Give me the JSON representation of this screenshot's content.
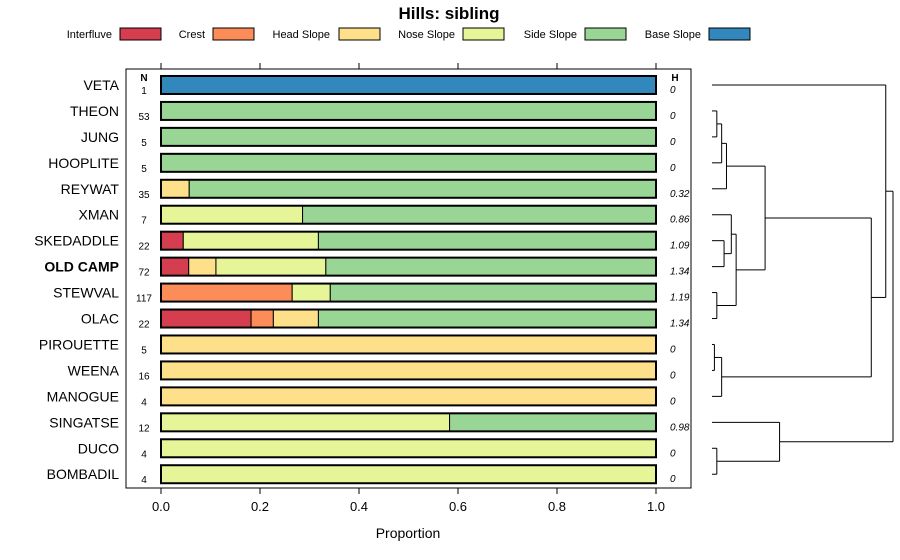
{
  "chart_data": {
    "type": "bar",
    "orientation": "horizontal",
    "stacked": true,
    "title": "Hills: sibling",
    "xlabel": "Proportion",
    "ylabel": "",
    "xlim": [
      0,
      1
    ],
    "x_ticks": [
      "0.0",
      "0.2",
      "0.4",
      "0.6",
      "0.8",
      "1.0"
    ],
    "x_tick_values": [
      0,
      0.2,
      0.4,
      0.6,
      0.8,
      1.0
    ],
    "n_header": "N",
    "h_header": "H",
    "legend": [
      {
        "name": "Interfluve",
        "color": "#d53e4f"
      },
      {
        "name": "Crest",
        "color": "#fc8d59"
      },
      {
        "name": "Head Slope",
        "color": "#fee08b"
      },
      {
        "name": "Nose Slope",
        "color": "#e6f598"
      },
      {
        "name": "Side Slope",
        "color": "#99d594"
      },
      {
        "name": "Base Slope",
        "color": "#3288bd"
      }
    ],
    "categories": [
      "VETA",
      "THEON",
      "JUNG",
      "HOOPLITE",
      "REYWAT",
      "XMAN",
      "SKEDADDLE",
      "OLD CAMP",
      "STEWVAL",
      "OLAC",
      "PIROUETTE",
      "WEENA",
      "MANOGUE",
      "SINGATSE",
      "DUCO",
      "BOMBADIL"
    ],
    "highlight": "OLD CAMP",
    "n": [
      "1",
      "53",
      "5",
      "5",
      "35",
      "7",
      "22",
      "72",
      "117",
      "22",
      "5",
      "16",
      "4",
      "12",
      "4",
      "4"
    ],
    "h": [
      "0",
      "0",
      "0",
      "0",
      "0.32",
      "0.86",
      "1.09",
      "1.34",
      "1.19",
      "1.34",
      "0",
      "0",
      "0",
      "0.98",
      "0",
      "0"
    ],
    "series": [
      {
        "name": "Interfluve",
        "values": [
          0,
          0,
          0,
          0,
          0,
          0,
          0.045,
          0.056,
          0,
          0.182,
          0,
          0,
          0,
          0,
          0,
          0
        ]
      },
      {
        "name": "Crest",
        "values": [
          0,
          0,
          0,
          0,
          0,
          0,
          0,
          0,
          0.265,
          0.045,
          0,
          0,
          0,
          0,
          0,
          0
        ]
      },
      {
        "name": "Head Slope",
        "values": [
          0,
          0,
          0,
          0,
          0.057,
          0,
          0,
          0.055,
          0,
          0.091,
          1,
          1,
          1,
          0,
          0,
          0
        ]
      },
      {
        "name": "Nose Slope",
        "values": [
          0,
          0,
          0,
          0,
          0,
          0.286,
          0.273,
          0.222,
          0.077,
          0,
          0,
          0,
          0,
          0.583,
          1,
          1
        ]
      },
      {
        "name": "Side Slope",
        "values": [
          0,
          1,
          1,
          1,
          0.943,
          0.714,
          0.682,
          0.667,
          0.658,
          0.682,
          0,
          0,
          0,
          0.417,
          0,
          0
        ]
      },
      {
        "name": "Base Slope",
        "values": [
          1,
          0,
          0,
          0,
          0,
          0,
          0,
          0,
          0,
          0,
          0,
          0,
          0,
          0,
          0,
          0
        ]
      }
    ],
    "dendrogram": {
      "leaf_order": [
        "VETA",
        "THEON",
        "JUNG",
        "HOOPLITE",
        "REYWAT",
        "XMAN",
        "SKEDADDLE",
        "OLD CAMP",
        "STEWVAL",
        "OLAC",
        "PIROUETTE",
        "WEENA",
        "MANOGUE",
        "SINGATSE",
        "DUCO",
        "BOMBADIL"
      ],
      "merges": [
        [
          1,
          2,
          0.02
        ],
        [
          16,
          3,
          0.04
        ],
        [
          4,
          17,
          0.06
        ],
        [
          14,
          15,
          0.02
        ],
        [
          6,
          7,
          0.05
        ],
        [
          8,
          9,
          0.02
        ],
        [
          5,
          20,
          0.08
        ],
        [
          21,
          22,
          0.1
        ],
        [
          23,
          18,
          0.22
        ],
        [
          10,
          11,
          0.01
        ],
        [
          12,
          25,
          0.04
        ],
        [
          13,
          19,
          0.28
        ],
        [
          24,
          26,
          0.66
        ],
        [
          0,
          28,
          0.72
        ],
        [
          27,
          29,
          0.75
        ]
      ]
    }
  }
}
